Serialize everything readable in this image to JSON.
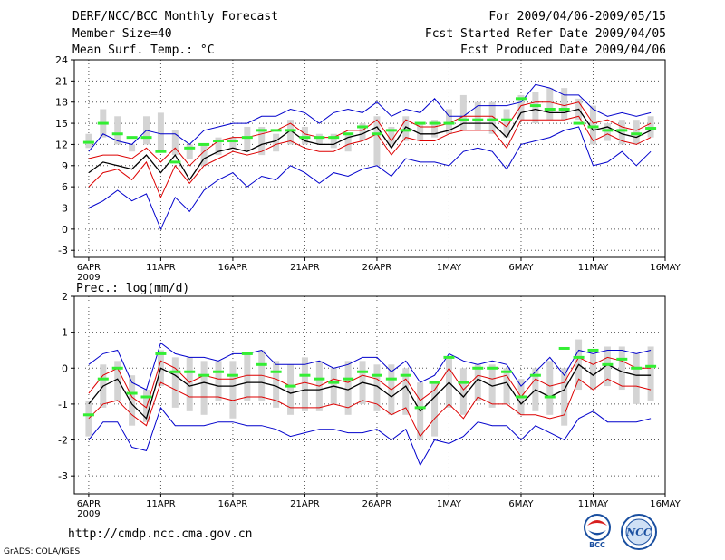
{
  "header": {
    "title": "DERF/NCC/BCC Monthly Forecast",
    "member_size": "Member Size=40",
    "variable": "Mean Surf. Temp.: °C",
    "period": "For 2009/04/06-2009/05/15",
    "fcst_started": "Fcst Started Refer Date 2009/04/05",
    "fcst_produced": "Fcst Produced Date 2009/04/06"
  },
  "footer": {
    "url": "http://cmdp.ncc.cma.gov.cn",
    "grads": "GrADS: COLA/IGES",
    "logo_bcc_text": "BCC",
    "logo_ncc_text": "NCC"
  },
  "colors": {
    "mean": "#000000",
    "inner_band": "#dd0000",
    "outer_band": "#0000cc",
    "climatology": "#33ee33",
    "spread_bar": "#d4d4d4"
  },
  "chart_data": [
    {
      "type": "line",
      "title": "Mean Surf. Temp.: °C",
      "x_tick_labels": [
        "6APR",
        "11APR",
        "16APR",
        "21APR",
        "26APR",
        "1MAY",
        "6MAY",
        "11MAY",
        "16MAY"
      ],
      "x_tick_days": [
        0,
        5,
        10,
        15,
        20,
        25,
        30,
        35,
        40
      ],
      "x_year_label": "2009",
      "xlim": [
        -1,
        40
      ],
      "ylim": [
        -4,
        24
      ],
      "y_ticks": [
        -3,
        0,
        3,
        6,
        9,
        12,
        15,
        18,
        21,
        24
      ],
      "x": [
        0,
        1,
        2,
        3,
        4,
        5,
        6,
        7,
        8,
        9,
        10,
        11,
        12,
        13,
        14,
        15,
        16,
        17,
        18,
        19,
        20,
        21,
        22,
        23,
        24,
        25,
        26,
        27,
        28,
        29,
        30,
        31,
        32,
        33,
        34,
        35,
        36,
        37,
        38,
        39
      ],
      "series": [
        {
          "name": "upper outer",
          "role": "outer",
          "values": [
            11,
            13.5,
            12.5,
            12,
            14,
            13.5,
            13.5,
            12,
            14,
            14.5,
            15,
            15,
            16,
            16,
            17,
            16.5,
            15,
            16.5,
            17,
            16.5,
            18,
            16,
            17,
            16.5,
            18.5,
            16,
            16,
            17.5,
            17.5,
            17.5,
            18,
            20.5,
            20,
            19,
            19,
            17,
            16,
            16.5,
            16,
            16.5
          ]
        },
        {
          "name": "upper inner",
          "role": "inner",
          "values": [
            10,
            10.5,
            10.5,
            10,
            11.5,
            9.5,
            11.5,
            9,
            11,
            12.5,
            13,
            13,
            13.5,
            14,
            15,
            13.5,
            13,
            13,
            14,
            14,
            15.5,
            12.5,
            15.5,
            14.5,
            14.5,
            15,
            16,
            16,
            16,
            14.5,
            17.5,
            18,
            18,
            17.5,
            18,
            15,
            15.5,
            14.5,
            14,
            15
          ]
        },
        {
          "name": "mean",
          "role": "mean",
          "values": [
            8,
            9.5,
            9,
            8.5,
            10.5,
            8,
            10.5,
            7,
            10,
            11,
            11.5,
            11,
            12,
            12.5,
            14,
            12.5,
            12,
            12,
            13,
            13.5,
            14.5,
            11.5,
            14.5,
            13.5,
            13.5,
            14,
            15,
            15,
            15,
            13,
            16.5,
            17,
            16.5,
            16.5,
            17,
            14,
            14.5,
            13.5,
            13,
            14
          ]
        },
        {
          "name": "lower inner",
          "role": "inner",
          "values": [
            6,
            8,
            8.5,
            7,
            9.5,
            4.5,
            9,
            6.5,
            9,
            10,
            11,
            10.5,
            11,
            12,
            12.5,
            11.5,
            11,
            11,
            12,
            12.5,
            13.5,
            10.5,
            13,
            12.5,
            12.5,
            13.5,
            14,
            14,
            14,
            11.5,
            15.5,
            15.5,
            15.5,
            15.5,
            16,
            12.5,
            13.5,
            12.5,
            12,
            13
          ]
        },
        {
          "name": "lower outer",
          "role": "outer",
          "values": [
            3,
            4,
            5.5,
            4,
            5,
            0,
            4.5,
            2.5,
            5.5,
            7,
            8,
            6,
            7.5,
            7,
            9,
            8,
            6.5,
            8,
            7.5,
            8.5,
            9,
            7.5,
            10,
            9.5,
            9.5,
            9,
            11,
            11.5,
            11,
            8.5,
            12,
            12.5,
            13,
            14,
            14.5,
            9,
            9.5,
            11,
            9,
            11
          ]
        }
      ],
      "spread_bars": {
        "low": [
          11.5,
          13,
          12,
          11,
          12,
          11,
          10.5,
          10,
          9,
          10.5,
          11.5,
          11,
          10.5,
          11,
          12,
          12,
          12,
          11.5,
          11,
          12.5,
          9,
          12,
          12.5,
          12.5,
          13,
          13.5,
          14,
          14,
          13.5,
          13,
          15.5,
          15,
          15.5,
          15.5,
          15.5,
          12,
          12.5,
          12,
          12,
          13
        ],
        "high": [
          13.5,
          17,
          16,
          12,
          16,
          16.5,
          14,
          12,
          12,
          13,
          13,
          14.5,
          14.5,
          13.5,
          15.5,
          14.5,
          13.5,
          13.5,
          13.5,
          15,
          16,
          14.5,
          16,
          15,
          15.5,
          17,
          19,
          18,
          18,
          17,
          19,
          19.5,
          20,
          20,
          18.5,
          17.5,
          15,
          15.5,
          15.5,
          16
        ]
      },
      "climatology": [
        12.3,
        15,
        13.5,
        13,
        13,
        11,
        9.5,
        11.5,
        12,
        12.5,
        12.5,
        13,
        14,
        14,
        14,
        13,
        13,
        13,
        13.5,
        14.5,
        13.5,
        14,
        14,
        15,
        15,
        15,
        15.5,
        15.5,
        15.5,
        15.5,
        18.5,
        17.5,
        17,
        17,
        15,
        14.5,
        14,
        14,
        13.5,
        14.3
      ]
    },
    {
      "type": "line",
      "title": "Prec.: log(mm/d)",
      "x_tick_labels": [
        "6APR",
        "11APR",
        "16APR",
        "21APR",
        "26APR",
        "1MAY",
        "6MAY",
        "11MAY",
        "16MAY"
      ],
      "x_tick_days": [
        0,
        5,
        10,
        15,
        20,
        25,
        30,
        35,
        40
      ],
      "x_year_label": "2009",
      "xlim": [
        -1,
        40
      ],
      "ylim": [
        -3.5,
        2
      ],
      "y_ticks": [
        -3,
        -2,
        -1,
        0,
        1,
        2
      ],
      "x": [
        0,
        1,
        2,
        3,
        4,
        5,
        6,
        7,
        8,
        9,
        10,
        11,
        12,
        13,
        14,
        15,
        16,
        17,
        18,
        19,
        20,
        21,
        22,
        23,
        24,
        25,
        26,
        27,
        28,
        29,
        30,
        31,
        32,
        33,
        34,
        35,
        36,
        37,
        38,
        39
      ],
      "series": [
        {
          "name": "upper outer",
          "role": "outer",
          "values": [
            0.1,
            0.4,
            0.5,
            -0.4,
            -0.6,
            0.7,
            0.4,
            0.3,
            0.3,
            0.2,
            0.4,
            0.4,
            0.5,
            0.1,
            0.1,
            0.1,
            0.2,
            0,
            0.1,
            0.3,
            0.3,
            -0.1,
            0.2,
            -0.4,
            -0.2,
            0.4,
            0.2,
            0.1,
            0.2,
            0.1,
            -0.5,
            -0.1,
            0.3,
            -0.2,
            0.5,
            0.4,
            0.5,
            0.5,
            0.4,
            0.5
          ]
        },
        {
          "name": "upper inner",
          "role": "inner",
          "values": [
            -0.7,
            -0.2,
            0,
            -0.8,
            -1.1,
            0.2,
            0,
            -0.4,
            -0.2,
            -0.3,
            -0.3,
            -0.2,
            -0.2,
            -0.3,
            -0.5,
            -0.4,
            -0.5,
            -0.3,
            -0.4,
            -0.2,
            -0.3,
            -0.6,
            -0.3,
            -0.9,
            -0.6,
            0,
            -0.6,
            -0.2,
            -0.3,
            -0.2,
            -0.8,
            -0.3,
            -0.5,
            -0.4,
            0.3,
            0.1,
            0.3,
            0.2,
            0,
            0
          ]
        },
        {
          "name": "mean",
          "role": "mean",
          "values": [
            -1,
            -0.5,
            -0.3,
            -1,
            -1.4,
            0,
            -0.2,
            -0.5,
            -0.4,
            -0.5,
            -0.5,
            -0.4,
            -0.4,
            -0.5,
            -0.7,
            -0.6,
            -0.6,
            -0.5,
            -0.6,
            -0.4,
            -0.5,
            -0.8,
            -0.5,
            -1.2,
            -0.8,
            -0.4,
            -0.8,
            -0.3,
            -0.5,
            -0.4,
            -1,
            -0.6,
            -0.8,
            -0.6,
            0.1,
            -0.2,
            0.1,
            -0.1,
            -0.2,
            -0.2
          ]
        },
        {
          "name": "lower inner",
          "role": "inner",
          "values": [
            -1.4,
            -1,
            -0.9,
            -1.3,
            -1.6,
            -0.4,
            -0.6,
            -0.8,
            -0.8,
            -0.8,
            -0.9,
            -0.8,
            -0.8,
            -0.9,
            -1.1,
            -1.1,
            -1.1,
            -1,
            -1.1,
            -0.9,
            -1,
            -1.3,
            -1.1,
            -1.9,
            -1.4,
            -1,
            -1.4,
            -0.8,
            -1,
            -1,
            -1.3,
            -1.3,
            -1.4,
            -1.3,
            -0.3,
            -0.6,
            -0.3,
            -0.5,
            -0.5,
            -0.6
          ]
        },
        {
          "name": "lower outer",
          "role": "outer",
          "values": [
            -2,
            -1.5,
            -1.5,
            -2.2,
            -2.3,
            -1.1,
            -1.6,
            -1.6,
            -1.6,
            -1.5,
            -1.5,
            -1.6,
            -1.6,
            -1.7,
            -1.9,
            -1.8,
            -1.7,
            -1.7,
            -1.8,
            -1.8,
            -1.7,
            -2,
            -1.7,
            -2.7,
            -2,
            -2.1,
            -1.9,
            -1.5,
            -1.6,
            -1.6,
            -2,
            -1.6,
            -1.8,
            -2,
            -1.4,
            -1.2,
            -1.5,
            -1.5,
            -1.5,
            -1.4
          ]
        }
      ],
      "spread_bars": {
        "low": [
          -1.9,
          -1.1,
          -0.9,
          -1.6,
          -1.5,
          -0.5,
          -1.1,
          -1.2,
          -1.3,
          -0.9,
          -1.4,
          -0.9,
          -0.9,
          -1.1,
          -1.3,
          -1.2,
          -1.2,
          -1,
          -1.3,
          -1,
          -1.2,
          -1.3,
          -1.3,
          -2,
          -1.9,
          -1.1,
          -1.3,
          -0.9,
          -1.1,
          -1,
          -1.3,
          -1.2,
          -1.3,
          -1.6,
          -0.6,
          -0.6,
          -0.5,
          -0.6,
          -1,
          -0.9
        ],
        "high": [
          -0.9,
          0.1,
          0.2,
          -0.2,
          -0.6,
          0.5,
          0.3,
          0.3,
          0.2,
          0.2,
          0.2,
          0.4,
          0.5,
          0.2,
          0.1,
          0.3,
          0.2,
          0,
          0.2,
          0.2,
          0.1,
          0.1,
          0,
          -0.4,
          -0.4,
          0.3,
          0,
          0.1,
          0.1,
          0,
          -0.3,
          0,
          0.2,
          0,
          0.8,
          0.4,
          0.6,
          0.6,
          0.4,
          0.6
        ]
      },
      "climatology": [
        -1.3,
        -0.3,
        0,
        -0.7,
        -0.8,
        0.4,
        -0.1,
        -0.1,
        -0.2,
        -0.1,
        -0.2,
        0.4,
        0.1,
        -0.1,
        -0.5,
        -0.2,
        -0.3,
        -0.4,
        -0.3,
        -0.1,
        -0.2,
        -0.3,
        -0.2,
        -1.1,
        -0.4,
        0.3,
        -0.4,
        0,
        0,
        -0.1,
        -0.8,
        -0.2,
        -0.8,
        0.55,
        0.3,
        0.5,
        0.1,
        0.25,
        0,
        0.05
      ]
    }
  ]
}
